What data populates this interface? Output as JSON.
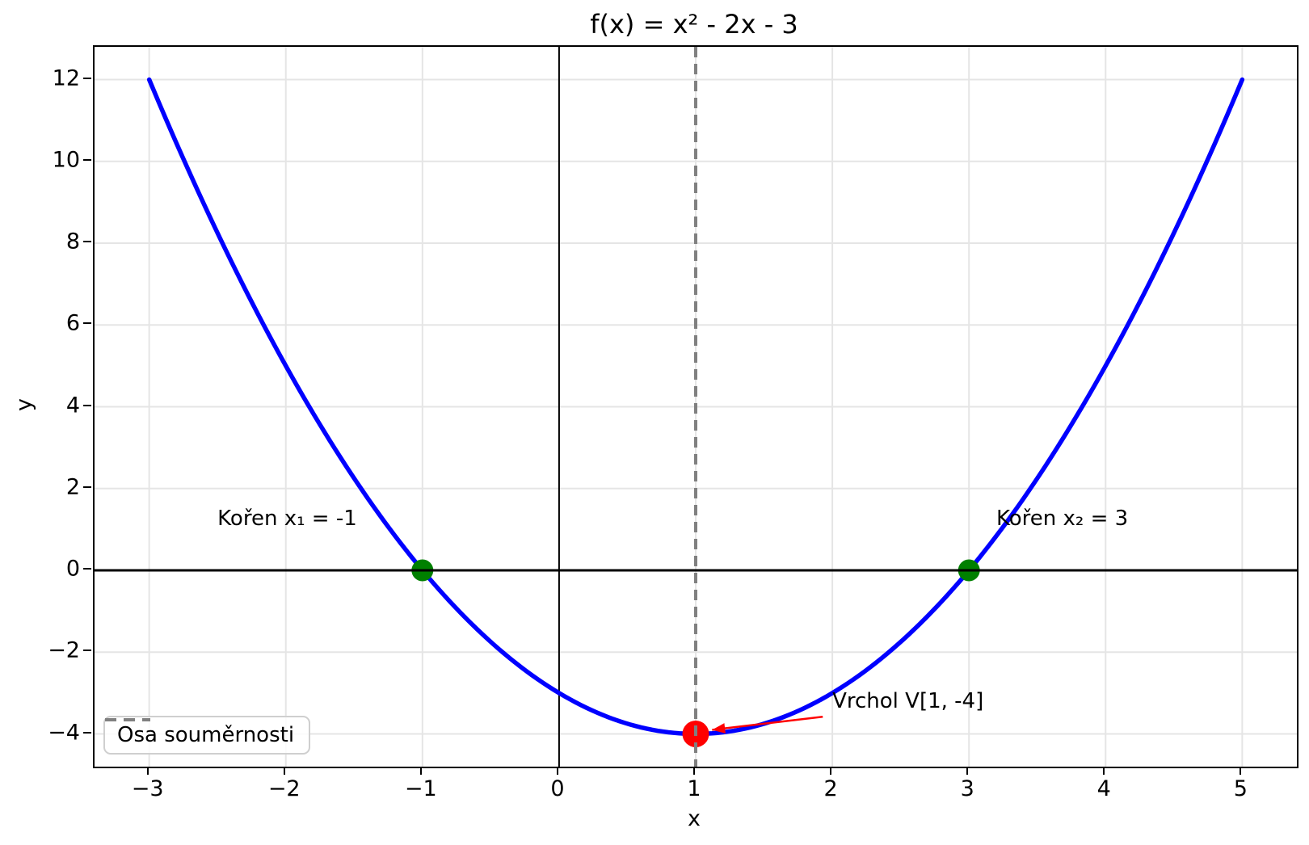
{
  "chart_data": {
    "type": "line",
    "title": "f(x) = x² - 2x - 3",
    "xlabel": "x",
    "ylabel": "y",
    "xlim": [
      -3.4,
      5.4
    ],
    "ylim": [
      -4.8,
      12.8
    ],
    "x_ticks": [
      -3,
      -2,
      -1,
      0,
      1,
      2,
      3,
      4,
      5
    ],
    "y_ticks": [
      -4,
      -2,
      0,
      2,
      4,
      6,
      8,
      10,
      12
    ],
    "grid": true,
    "grid_color": "#e5e5e5",
    "series": [
      {
        "name": "f(x) = x² - 2x - 3",
        "function": "quadratic",
        "coefficients": {
          "a": 1,
          "b": -2,
          "c": -3
        },
        "x_domain": [
          -3,
          5
        ],
        "color": "#0000ff",
        "linewidth": 5.5,
        "sample_x": [
          -3,
          -2,
          -1,
          0,
          1,
          2,
          3,
          4,
          5
        ],
        "sample_y": [
          12,
          5,
          0,
          -3,
          -4,
          -3,
          0,
          5,
          12
        ]
      }
    ],
    "key_points": [
      {
        "name": "root-x1",
        "x": -1,
        "y": 0,
        "color": "#008000",
        "radius": 13.5
      },
      {
        "name": "root-x2",
        "x": 3,
        "y": 0,
        "color": "#008000",
        "radius": 13.5
      },
      {
        "name": "vertex",
        "x": 1,
        "y": -4,
        "color": "#ff0000",
        "radius": 16.5
      }
    ],
    "reference_lines": [
      {
        "name": "x-axis-line",
        "orientation": "horizontal",
        "value": 0,
        "color": "#000000",
        "width": 3,
        "style": "solid"
      },
      {
        "name": "y-axis-line",
        "orientation": "vertical",
        "value": 0,
        "color": "#000000",
        "width": 2,
        "style": "solid"
      },
      {
        "name": "axis-of-symmetry",
        "orientation": "vertical",
        "value": 1,
        "color": "#808080",
        "width": 4,
        "style": "dashed"
      }
    ],
    "annotations": [
      {
        "name": "root1-label",
        "text": "Kořen x₁ = -1",
        "x": -2.5,
        "y": 1
      },
      {
        "name": "root2-label",
        "text": "Kořen x₂ = 3",
        "x": 3.2,
        "y": 1
      },
      {
        "name": "vertex-label",
        "text": "Vrchol V[1, -4]",
        "x": 2.0,
        "y": -3.45,
        "arrow": {
          "from": [
            1.93,
            -3.58
          ],
          "to": [
            1.12,
            -3.9
          ],
          "color": "#ff0000"
        }
      }
    ],
    "legend": {
      "position": "lower left",
      "items": [
        {
          "label": "Osa souměrnosti",
          "color": "#808080",
          "style": "dashed"
        }
      ]
    }
  }
}
